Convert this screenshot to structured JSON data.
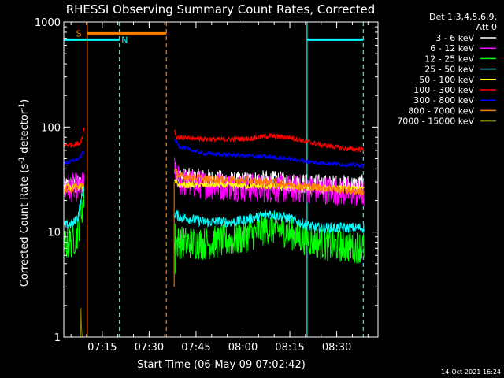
{
  "chart_data": {
    "type": "line",
    "title": "RHESSI Observing Summary Count Rates, Corrected",
    "xlabel": "Start Time (06-May-09 07:02:42)",
    "ylabel_main": "Corrected Count Rate (s",
    "ylabel_sup1": "-1",
    "ylabel_mid": " detector",
    "ylabel_sup2": "-1",
    "ylabel_end": ")",
    "y_scale": "log",
    "ylim": [
      1,
      1000
    ],
    "y_ticks": [
      {
        "value": 1,
        "label": "1"
      },
      {
        "value": 10,
        "label": "10"
      },
      {
        "value": 100,
        "label": "100"
      },
      {
        "value": 1000,
        "label": "1000"
      }
    ],
    "x_unit": "minutes after 07:02:42",
    "xlim": [
      0,
      100.5
    ],
    "x_ticks": [
      {
        "value": 12.3,
        "label": "07:15"
      },
      {
        "value": 27.3,
        "label": "07:30"
      },
      {
        "value": 42.3,
        "label": "07:45"
      },
      {
        "value": 57.3,
        "label": "08:00"
      },
      {
        "value": 72.3,
        "label": "08:15"
      },
      {
        "value": 87.3,
        "label": "08:30"
      }
    ],
    "legend_header": "Det 1,3,4,5,6,9,",
    "legend_header2": "Att 0",
    "legend_placement": "right",
    "series": [
      {
        "name": "3 - 6 keV",
        "color": "#ffffff",
        "noise": 0.1,
        "pre": [
          [
            0,
            27
          ],
          [
            5,
            28
          ],
          [
            6.5,
            29
          ]
        ],
        "post": [
          [
            35.4,
            38
          ],
          [
            37,
            33
          ],
          [
            45,
            32
          ],
          [
            55,
            30
          ],
          [
            65,
            31
          ],
          [
            75,
            29
          ],
          [
            85,
            28
          ],
          [
            96,
            28
          ]
        ]
      },
      {
        "name": "6 - 12 keV",
        "color": "#ff00ff",
        "noise": 0.14,
        "pre": [
          [
            0,
            26
          ],
          [
            5,
            27
          ],
          [
            6.5,
            28
          ]
        ],
        "post": [
          [
            35.4,
            40
          ],
          [
            37,
            30
          ],
          [
            45,
            28
          ],
          [
            55,
            27
          ],
          [
            65,
            26
          ],
          [
            75,
            26
          ],
          [
            85,
            25
          ],
          [
            96,
            23
          ]
        ]
      },
      {
        "name": "12 - 25 keV",
        "color": "#00ff00",
        "noise": 0.16,
        "pre": [
          [
            0,
            7.5
          ],
          [
            2,
            8
          ],
          [
            4,
            9
          ],
          [
            5,
            12
          ],
          [
            6,
            18
          ],
          [
            6.5,
            22
          ]
        ],
        "post": [
          [
            35.4,
            8
          ],
          [
            37,
            8
          ],
          [
            45,
            7.8
          ],
          [
            55,
            8.5
          ],
          [
            60,
            9.5
          ],
          [
            65,
            11
          ],
          [
            70,
            10.5
          ],
          [
            75,
            9
          ],
          [
            85,
            7.5
          ],
          [
            96,
            7.2
          ]
        ]
      },
      {
        "name": "25 - 50 keV",
        "color": "#00ffff",
        "noise": 0.05,
        "pre": [
          [
            0,
            11.5
          ],
          [
            3,
            12
          ],
          [
            4.5,
            14
          ],
          [
            5.5,
            20
          ],
          [
            6.5,
            25
          ]
        ],
        "post": [
          [
            35.4,
            15
          ],
          [
            37,
            14
          ],
          [
            45,
            12.5
          ],
          [
            55,
            12.5
          ],
          [
            62,
            14
          ],
          [
            66,
            15
          ],
          [
            72,
            13.5
          ],
          [
            80,
            11
          ],
          [
            90,
            11
          ],
          [
            96,
            11
          ]
        ]
      },
      {
        "name": "50 - 100 keV",
        "color": "#ffff00",
        "noise": 0.03,
        "pre": [
          [
            0,
            27
          ],
          [
            6.5,
            27
          ]
        ],
        "post": [
          [
            35.4,
            30
          ],
          [
            37,
            28
          ],
          [
            50,
            28
          ],
          [
            70,
            27
          ],
          [
            85,
            26
          ],
          [
            96,
            26
          ]
        ]
      },
      {
        "name": "100 - 300 keV",
        "color": "#ff0000",
        "noise": 0.025,
        "pre": [
          [
            0,
            67
          ],
          [
            3,
            68
          ],
          [
            5,
            70
          ],
          [
            6,
            80
          ],
          [
            6.5,
            100
          ]
        ],
        "post": [
          [
            35.4,
            95
          ],
          [
            36,
            80
          ],
          [
            40,
            78
          ],
          [
            50,
            76
          ],
          [
            60,
            78
          ],
          [
            65,
            82
          ],
          [
            72,
            80
          ],
          [
            80,
            70
          ],
          [
            90,
            62
          ],
          [
            96,
            61
          ]
        ]
      },
      {
        "name": "300 - 800 keV",
        "color": "#0000ff",
        "noise": 0.02,
        "pre": [
          [
            0,
            45
          ],
          [
            3,
            48
          ],
          [
            5,
            50
          ],
          [
            6.5,
            60
          ]
        ],
        "post": [
          [
            35.4,
            75
          ],
          [
            37,
            65
          ],
          [
            45,
            56
          ],
          [
            55,
            54
          ],
          [
            65,
            52
          ],
          [
            72,
            50
          ],
          [
            80,
            46
          ],
          [
            90,
            44
          ],
          [
            96,
            43
          ]
        ]
      },
      {
        "name": "800 - 7000 keV",
        "color": "#ff8000",
        "noise": 0.04,
        "pre": [
          [
            0,
            25
          ],
          [
            3,
            26
          ],
          [
            6.5,
            29
          ]
        ],
        "post": [
          [
            35.4,
            38
          ],
          [
            37,
            34
          ],
          [
            45,
            32
          ],
          [
            55,
            31
          ],
          [
            65,
            30
          ],
          [
            75,
            28
          ],
          [
            85,
            26
          ],
          [
            96,
            24
          ]
        ]
      },
      {
        "name": "7000 - 15000 keV",
        "color": "#808000",
        "noise": 0,
        "pre": [
          [
            5.4,
            1
          ],
          [
            5.5,
            1.9
          ],
          [
            5.7,
            1.2
          ],
          [
            5.9,
            1
          ]
        ],
        "post": []
      }
    ],
    "gaps": [
      [
        7.5,
        34.5
      ]
    ],
    "orange_dip": {
      "x": 35.3,
      "y": 3
    },
    "vertical_lines": [
      {
        "x": 7.5,
        "color": "#ff8000",
        "style": "solid"
      },
      {
        "x": 17.8,
        "color": "#00ffff",
        "style": "dashed"
      },
      {
        "x": 32.8,
        "color": "#ff8000",
        "style": "dashed"
      },
      {
        "x": 77.8,
        "color": "#00ffff",
        "style": "solid"
      },
      {
        "x": 95.8,
        "color": "#00ffff",
        "style": "dashed"
      }
    ],
    "bars": [
      {
        "label": "S",
        "color": "#ff8000",
        "x0": 7.5,
        "x1": 32.8,
        "y": 780,
        "label_x": 4.8
      },
      {
        "label": "N",
        "color": "#00ffff",
        "x0": 0,
        "x1": 17.8,
        "y": 680,
        "label_x": 19.5
      },
      {
        "label": "",
        "color": "#00ffff",
        "x0": 77.8,
        "x1": 95.8,
        "y": 680,
        "label_x": 0
      }
    ]
  },
  "footer": {
    "timestamp": "14-Oct-2021 16:24"
  }
}
